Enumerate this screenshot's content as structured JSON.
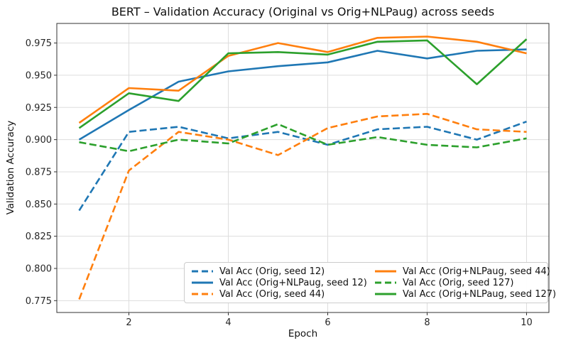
{
  "chart_data": {
    "type": "line",
    "title": "BERT – Validation Accuracy (Original vs Orig+NLPaug) across seeds",
    "xlabel": "Epoch",
    "ylabel": "Validation Accuracy",
    "x": [
      1,
      2,
      3,
      4,
      5,
      6,
      7,
      8,
      9,
      10
    ],
    "xlim": [
      0.55,
      10.45
    ],
    "ylim": [
      0.7658,
      0.9902
    ],
    "xticks": [
      2,
      4,
      6,
      8,
      10
    ],
    "yticks": [
      0.775,
      0.8,
      0.825,
      0.85,
      0.875,
      0.9,
      0.925,
      0.95,
      0.975
    ],
    "grid": true,
    "legend_position": "lower center inside axes, 2 columns",
    "legend_columns": [
      [
        0,
        1,
        2
      ],
      [
        3,
        4,
        5
      ]
    ],
    "series": [
      {
        "name": "Val Acc (Orig, seed 12)",
        "color": "#1f77b4",
        "style": "dashed",
        "values": [
          0.845,
          0.906,
          0.91,
          0.901,
          0.906,
          0.896,
          0.908,
          0.91,
          0.9,
          0.914
        ]
      },
      {
        "name": "Val Acc (Orig+NLPaug, seed 12)",
        "color": "#1f77b4",
        "style": "solid",
        "values": [
          0.9,
          0.923,
          0.945,
          0.953,
          0.957,
          0.96,
          0.969,
          0.963,
          0.969,
          0.97
        ]
      },
      {
        "name": "Val Acc (Orig, seed 44)",
        "color": "#ff7f0e",
        "style": "dashed",
        "values": [
          0.776,
          0.876,
          0.906,
          0.9,
          0.888,
          0.909,
          0.918,
          0.92,
          0.908,
          0.906
        ]
      },
      {
        "name": "Val Acc (Orig+NLPaug, seed 44)",
        "color": "#ff7f0e",
        "style": "solid",
        "values": [
          0.913,
          0.94,
          0.938,
          0.965,
          0.975,
          0.968,
          0.979,
          0.98,
          0.976,
          0.967
        ]
      },
      {
        "name": "Val Acc (Orig, seed 127)",
        "color": "#2ca02c",
        "style": "dashed",
        "values": [
          0.898,
          0.891,
          0.9,
          0.897,
          0.912,
          0.896,
          0.902,
          0.896,
          0.894,
          0.901
        ]
      },
      {
        "name": "Val Acc (Orig+NLPaug, seed 127)",
        "color": "#2ca02c",
        "style": "solid",
        "values": [
          0.909,
          0.936,
          0.93,
          0.967,
          0.968,
          0.966,
          0.976,
          0.977,
          0.943,
          0.978
        ]
      }
    ],
    "style_colors": {
      "grid": "#dddddd",
      "spine": "#333333",
      "text": "#262626",
      "legend_border": "#cccccc"
    }
  }
}
